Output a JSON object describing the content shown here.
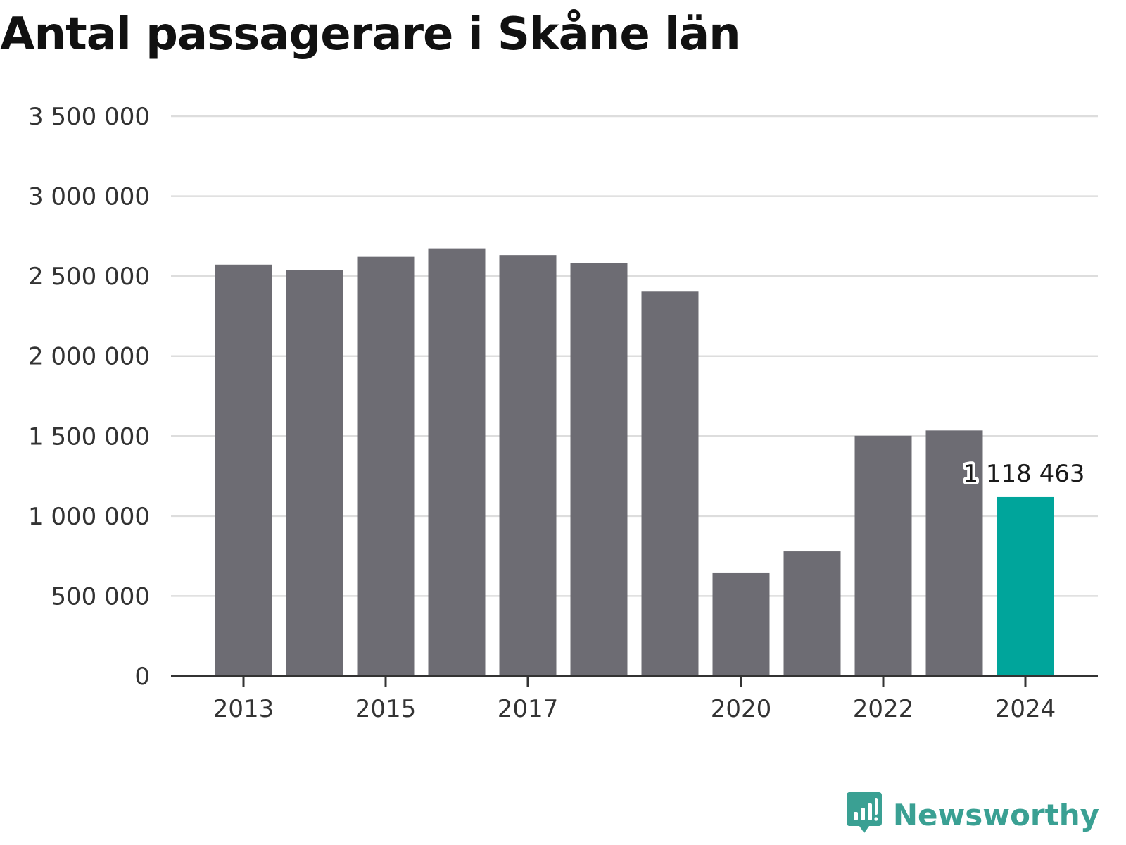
{
  "title": "Antal passagerare i Skåne län",
  "brand": {
    "name": "Newsworthy",
    "icon": "newsworthy-logo-icon",
    "color": "#3aa093"
  },
  "colors": {
    "bar": "#6d6c73",
    "highlight": "#00a59b",
    "grid": "#dddddd",
    "axis": "#333333"
  },
  "chart_data": {
    "type": "bar",
    "title": "Antal passagerare i Skåne län",
    "xlabel": "",
    "ylabel": "",
    "categories": [
      "2013",
      "2014",
      "2015",
      "2016",
      "2017",
      "2018",
      "2019",
      "2020",
      "2021",
      "2022",
      "2023",
      "2024"
    ],
    "x_tick_labels": [
      "2013",
      "2015",
      "2017",
      "2020",
      "2022",
      "2024"
    ],
    "values": [
      2572000,
      2538000,
      2621000,
      2674000,
      2632000,
      2583000,
      2407000,
      643000,
      779000,
      1502000,
      1535000,
      1118463
    ],
    "highlight_index": 11,
    "data_labels": [
      {
        "index": 11,
        "text": "1 118 463"
      }
    ],
    "ylim": [
      0,
      3500000
    ],
    "y_ticks": [
      0,
      500000,
      1000000,
      1500000,
      2000000,
      2500000,
      3000000,
      3500000
    ],
    "y_tick_labels": [
      "0",
      "500 000",
      "1 000 000",
      "1 500 000",
      "2 000 000",
      "2 500 000",
      "3 000 000",
      "3 500 000"
    ],
    "grid": true,
    "legend": "none"
  }
}
